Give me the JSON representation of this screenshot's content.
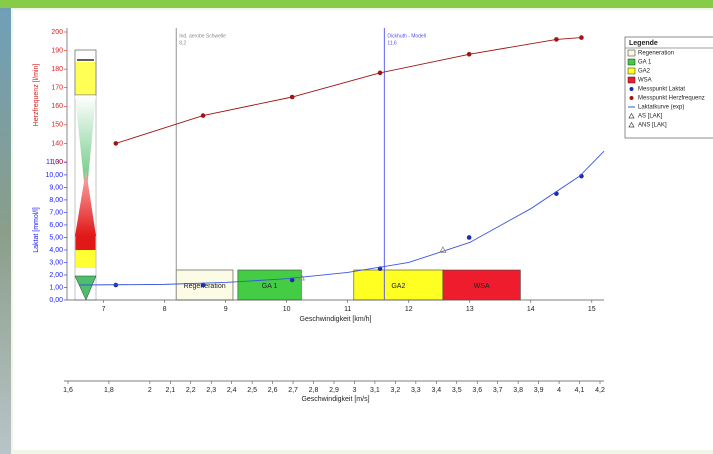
{
  "chart_data": {
    "type": "line",
    "xlabel": "Geschwindigkeit [km/h]",
    "ylabel": "Laktat [mmol/l]",
    "y2label": "Herzfrequenz [l/min]",
    "x2label": "Geschwindigkeit [m/s]",
    "legend_title": "Legende",
    "legend": "right",
    "xlim": [
      6.4,
      15.2
    ],
    "xticks": [
      7,
      8,
      9,
      10,
      11,
      12,
      13,
      14,
      15
    ],
    "ylim": [
      0,
      11
    ],
    "yticks": [
      {
        "value": 0,
        "label": "0,00"
      },
      {
        "value": 1,
        "label": "1,00"
      },
      {
        "value": 2,
        "label": "2,00"
      },
      {
        "value": 3,
        "label": "3,00"
      },
      {
        "value": 4,
        "label": "4,00"
      },
      {
        "value": 5,
        "label": "5,00"
      },
      {
        "value": 6,
        "label": "6,00"
      },
      {
        "value": 7,
        "label": "7,00"
      },
      {
        "value": 8,
        "label": "8,00"
      },
      {
        "value": 9,
        "label": "9,00"
      },
      {
        "value": 10,
        "label": "10,00"
      },
      {
        "value": 11,
        "label": "11,00"
      }
    ],
    "y2lim": [
      130,
      200
    ],
    "y2ticks": [
      130,
      140,
      150,
      160,
      170,
      180,
      190,
      200
    ],
    "x2lim": [
      1.6,
      4.2
    ],
    "x2ticks": [
      {
        "value": 1.6,
        "label": "1,6"
      },
      {
        "value": 1.8,
        "label": "1,8"
      },
      2,
      {
        "value": 2.1,
        "label": "2,1"
      },
      {
        "value": 2.2,
        "label": "2,2"
      },
      {
        "value": 2.3,
        "label": "2,3"
      },
      {
        "value": 2.4,
        "label": "2,4"
      },
      {
        "value": 2.5,
        "label": "2,5"
      },
      {
        "value": 2.6,
        "label": "2,6"
      },
      {
        "value": 2.7,
        "label": "2,7"
      },
      {
        "value": 2.8,
        "label": "2,8"
      },
      {
        "value": 2.9,
        "label": "2,9"
      },
      3,
      {
        "value": 3.1,
        "label": "3,1"
      },
      {
        "value": 3.2,
        "label": "3,2"
      },
      {
        "value": 3.3,
        "label": "3,3"
      },
      {
        "value": 3.4,
        "label": "3,4"
      },
      {
        "value": 3.5,
        "label": "3,5"
      },
      {
        "value": 3.6,
        "label": "3,6"
      },
      {
        "value": 3.7,
        "label": "3,7"
      },
      {
        "value": 3.8,
        "label": "3,8"
      },
      {
        "value": 3.9,
        "label": "3,9"
      },
      4,
      {
        "value": 4.1,
        "label": "4,1"
      },
      {
        "value": 4.2,
        "label": "4,2"
      }
    ],
    "zones": [
      {
        "name": "Regeneration",
        "x0": 8.19,
        "x1": 9.12,
        "color": "#fbfbe6"
      },
      {
        "name": "GA 1",
        "x0": 9.2,
        "x1": 10.24,
        "color": "#44cc44"
      },
      {
        "name": "GA2",
        "x0": 11.1,
        "x1": 12.56,
        "color": "#ffff22"
      },
      {
        "name": "WSA",
        "x0": 12.56,
        "x1": 13.83,
        "color": "#ee1c2c"
      }
    ],
    "series": [
      {
        "name": "Messpunkt Laktat",
        "color": "#1c2ca8",
        "marker": "circle",
        "line": false,
        "x": [
          7.2,
          8.63,
          10.09,
          11.53,
          12.99,
          14.42,
          14.83
        ],
        "values": [
          1.2,
          1.2,
          1.6,
          2.5,
          5.0,
          8.5,
          9.9
        ]
      },
      {
        "name": "Messpunkt Herzfrequenz",
        "color": "#a01414",
        "marker": "circle",
        "line": true,
        "axis": "y2",
        "x": [
          7.2,
          8.63,
          10.09,
          11.53,
          12.99,
          14.42,
          14.83
        ],
        "values": [
          140,
          155,
          165,
          178,
          188,
          196,
          197
        ]
      },
      {
        "name": "Laktatkurve (exp)",
        "color": "#3a55e0",
        "marker": "none",
        "line": true,
        "x": [
          6.6,
          8,
          9,
          10,
          11,
          12,
          13,
          14,
          14.8,
          15.2
        ],
        "values": [
          1.2,
          1.25,
          1.4,
          1.7,
          2.2,
          3.0,
          4.6,
          7.3,
          9.9,
          11.9
        ]
      },
      {
        "name": "AS [LAK]",
        "color": "#888888",
        "marker": "triangle",
        "line": false,
        "x": [
          10.24
        ],
        "values": [
          1.8
        ]
      },
      {
        "name": "ANS [LAK]",
        "color": "#888888",
        "marker": "triangle",
        "line": false,
        "x": [
          12.56
        ],
        "values": [
          4.0
        ]
      }
    ],
    "annotations": [
      {
        "text": "Ind. aerobe Schwelle",
        "value_text": "8,2",
        "x": 8.19,
        "color": "#888888"
      },
      {
        "text": "Dickhuth - Modell",
        "value_text": "11,6",
        "x": 11.6,
        "color": "#5050ee"
      }
    ]
  }
}
